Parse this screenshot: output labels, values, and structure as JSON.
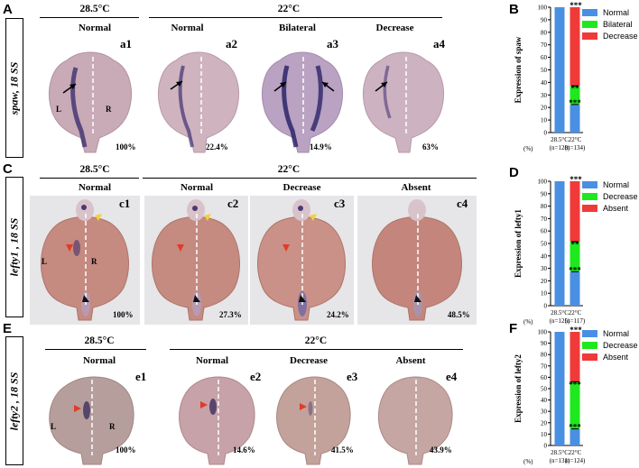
{
  "panels": [
    "A",
    "B",
    "C",
    "D",
    "E",
    "F"
  ],
  "temps": {
    "t1": "28.5°C",
    "t2": "22°C"
  },
  "rows": [
    {
      "gene_label": "spaw, 18 SS",
      "images": [
        {
          "cat": "Normal",
          "sub": "a1",
          "pct": "100%"
        },
        {
          "cat": "Normal",
          "sub": "a2",
          "pct": "22.4%"
        },
        {
          "cat": "Bilateral",
          "sub": "a3",
          "pct": "14.9%"
        },
        {
          "cat": "Decrease",
          "sub": "a4",
          "pct": "63%"
        }
      ]
    },
    {
      "gene_label": "lefty1 , 18 SS",
      "images": [
        {
          "cat": "Normal",
          "sub": "c1",
          "pct": "100%"
        },
        {
          "cat": "Normal",
          "sub": "c2",
          "pct": "27.3%"
        },
        {
          "cat": "Decrease",
          "sub": "c3",
          "pct": "24.2%"
        },
        {
          "cat": "Absent",
          "sub": "c4",
          "pct": "48.5%"
        }
      ]
    },
    {
      "gene_label": "lefty2 , 18 SS",
      "images": [
        {
          "cat": "Normal",
          "sub": "e1",
          "pct": "100%"
        },
        {
          "cat": "Normal",
          "sub": "e2",
          "pct": "14.6%"
        },
        {
          "cat": "Decrease",
          "sub": "e3",
          "pct": "41.5%"
        },
        {
          "cat": "Absent",
          "sub": "e4",
          "pct": "43.9%"
        }
      ]
    }
  ],
  "side_labels": {
    "L": "L",
    "R": "R"
  },
  "colors": {
    "normal": "#4a90e2",
    "mid": "#1ee81e",
    "high": "#f03a3a"
  },
  "chart_data": [
    {
      "type": "bar",
      "stacked": true,
      "ylabel": "Expression of spaw",
      "ylim": [
        0,
        100
      ],
      "yticks": [
        0,
        10,
        20,
        30,
        40,
        50,
        60,
        70,
        80,
        90,
        100
      ],
      "y_unit": "(%)",
      "categories": [
        "28.5°C",
        "22°C"
      ],
      "category_n": [
        "(n=128)",
        "(n=134)"
      ],
      "series": [
        {
          "name": "Normal",
          "values": [
            100,
            22.4
          ]
        },
        {
          "name": "Bilateral",
          "values": [
            0,
            14.9
          ]
        },
        {
          "name": "Decrease",
          "values": [
            0,
            62.7
          ]
        }
      ],
      "significance": [
        "***",
        "**",
        "***"
      ],
      "legend": "top-right"
    },
    {
      "type": "bar",
      "stacked": true,
      "ylabel": "Expression of lefty1",
      "ylim": [
        0,
        100
      ],
      "yticks": [
        0,
        10,
        20,
        30,
        40,
        50,
        60,
        70,
        80,
        90,
        100
      ],
      "y_unit": "(%)",
      "categories": [
        "28.5°C",
        "22°C"
      ],
      "category_n": [
        "(n=125)",
        "(n=117)"
      ],
      "series": [
        {
          "name": "Normal",
          "values": [
            100,
            27.3
          ]
        },
        {
          "name": "Decrease",
          "values": [
            0,
            24.2
          ]
        },
        {
          "name": "Absent",
          "values": [
            0,
            48.5
          ]
        }
      ],
      "significance": [
        "***",
        "**",
        "***"
      ],
      "legend": "top-right"
    },
    {
      "type": "bar",
      "stacked": true,
      "ylabel": "Expression of lefty2",
      "ylim": [
        0,
        100
      ],
      "yticks": [
        0,
        10,
        20,
        30,
        40,
        50,
        60,
        70,
        80,
        90,
        100
      ],
      "y_unit": "(%)",
      "categories": [
        "28.5°C",
        "22°C"
      ],
      "category_n": [
        "(n=131)",
        "(n=124)"
      ],
      "series": [
        {
          "name": "Normal",
          "values": [
            100,
            14.6
          ]
        },
        {
          "name": "Decrease",
          "values": [
            0,
            41.5
          ]
        },
        {
          "name": "Absent",
          "values": [
            0,
            43.9
          ]
        }
      ],
      "significance": [
        "***",
        "***",
        "***"
      ],
      "legend": "top-right"
    }
  ]
}
